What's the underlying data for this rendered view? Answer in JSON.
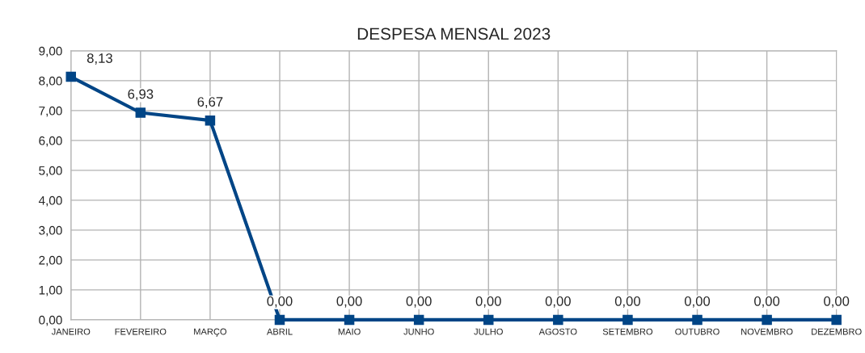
{
  "chart_data": {
    "type": "line",
    "title": "DESPESA MENSAL 2023",
    "categories": [
      "JANEIRO",
      "FEVEREIRO",
      "MARÇO",
      "ABRIL",
      "MAIO",
      "JUNHO",
      "JULHO",
      "AGOSTO",
      "SETEMBRO",
      "OUTUBRO",
      "NOVEMBRO",
      "DEZEMBRO"
    ],
    "series": [
      {
        "color": "#004586",
        "values": [
          8.13,
          6.93,
          6.67,
          0,
          0,
          0,
          0,
          0,
          0,
          0,
          0,
          0
        ],
        "value_labels": [
          "8,13",
          "6,93",
          "6,67",
          "0,00",
          "0,00",
          "0,00",
          "0,00",
          "0,00",
          "0,00",
          "0,00",
          "0,00",
          "0,00"
        ]
      }
    ],
    "ylim": [
      0,
      9
    ],
    "yticks": [
      {
        "value": 0,
        "label": "0,00"
      },
      {
        "value": 1,
        "label": "1,00"
      },
      {
        "value": 2,
        "label": "2,00"
      },
      {
        "value": 3,
        "label": "3,00"
      },
      {
        "value": 4,
        "label": "4,00"
      },
      {
        "value": 5,
        "label": "5,00"
      },
      {
        "value": 6,
        "label": "6,00"
      },
      {
        "value": 7,
        "label": "7,00"
      },
      {
        "value": 8,
        "label": "8,00"
      },
      {
        "value": 9,
        "label": "9,00"
      }
    ],
    "grid": true,
    "marker": "square",
    "line_style": "solid"
  }
}
